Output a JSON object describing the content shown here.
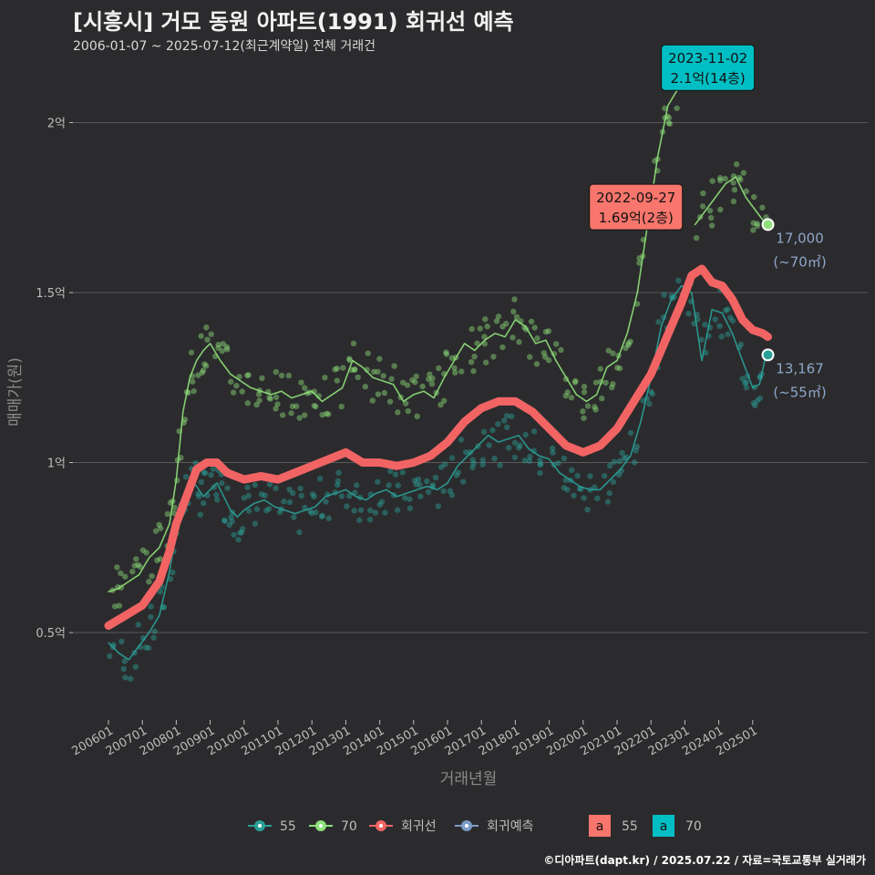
{
  "title": "[시흥시] 거모 동원 아파트(1991) 회귀선 예측",
  "subtitle": "2006-01-07 ~ 2025-07-12(최근계약일) 전체 거래건",
  "caption": "©디아파트(dapt.kr) / 2025.07.22 / 자료=국토교통부 실거래가",
  "colors": {
    "background": "#2b2b2d",
    "grid": "#5a5a5a",
    "series_55": "#2aa198",
    "series_70": "#8fe07a",
    "regression": "#f26464",
    "forecast": "#7f9cc9",
    "label_55": "#f8766d",
    "label_70": "#00bfc4"
  },
  "chart_data": {
    "type": "line",
    "xlabel": "거래년월",
    "ylabel": "매매가(원)",
    "x_range": [
      2006.0,
      2025.6
    ],
    "ylim": [
      0.22,
      2.25
    ],
    "y_unit": "억",
    "y_ticks": [
      {
        "value": 0.5,
        "label": "0.5억"
      },
      {
        "value": 1.0,
        "label": "1억"
      },
      {
        "value": 1.5,
        "label": "1.5억"
      },
      {
        "value": 2.0,
        "label": "2억"
      }
    ],
    "x_ticks": [
      {
        "value": 2006.0,
        "label": "200601"
      },
      {
        "value": 2007.0,
        "label": "200701"
      },
      {
        "value": 2008.0,
        "label": "200801"
      },
      {
        "value": 2009.0,
        "label": "200901"
      },
      {
        "value": 2010.0,
        "label": "201001"
      },
      {
        "value": 2011.0,
        "label": "201101"
      },
      {
        "value": 2012.0,
        "label": "201201"
      },
      {
        "value": 2013.0,
        "label": "201301"
      },
      {
        "value": 2014.0,
        "label": "201401"
      },
      {
        "value": 2015.0,
        "label": "201501"
      },
      {
        "value": 2016.0,
        "label": "201601"
      },
      {
        "value": 2017.0,
        "label": "201701"
      },
      {
        "value": 2018.0,
        "label": "201801"
      },
      {
        "value": 2019.0,
        "label": "201901"
      },
      {
        "value": 2020.0,
        "label": "202001"
      },
      {
        "value": 2021.0,
        "label": "202101"
      },
      {
        "value": 2022.0,
        "label": "202201"
      },
      {
        "value": 2023.0,
        "label": "202301"
      },
      {
        "value": 2024.0,
        "label": "202401"
      },
      {
        "value": 2025.0,
        "label": "202501"
      }
    ],
    "series": [
      {
        "name": "55",
        "color": "#2aa198",
        "x": [
          2006.0,
          2006.3,
          2006.6,
          2006.9,
          2007.2,
          2007.5,
          2007.8,
          2008.0,
          2008.2,
          2008.4,
          2008.6,
          2008.8,
          2009.0,
          2009.2,
          2009.4,
          2009.6,
          2009.8,
          2010.0,
          2010.3,
          2010.6,
          2010.9,
          2011.2,
          2011.5,
          2011.8,
          2012.1,
          2012.4,
          2012.7,
          2013.0,
          2013.3,
          2013.6,
          2013.9,
          2014.2,
          2014.5,
          2014.8,
          2015.1,
          2015.4,
          2015.7,
          2016.0,
          2016.3,
          2016.6,
          2016.9,
          2017.2,
          2017.5,
          2017.8,
          2018.1,
          2018.4,
          2018.7,
          2019.0,
          2019.3,
          2019.6,
          2019.9,
          2020.2,
          2020.5,
          2020.8,
          2021.1,
          2021.4,
          2021.7,
          2022.0,
          2022.3,
          2022.6,
          2022.9,
          2023.2,
          2023.5,
          2023.8,
          2024.1,
          2024.4,
          2024.7,
          2025.0,
          2025.2,
          2025.4
        ],
        "y": [
          0.47,
          0.44,
          0.42,
          0.46,
          0.5,
          0.55,
          0.68,
          0.8,
          0.88,
          0.95,
          0.93,
          0.9,
          0.92,
          0.94,
          0.9,
          0.86,
          0.84,
          0.86,
          0.88,
          0.89,
          0.87,
          0.86,
          0.85,
          0.86,
          0.87,
          0.9,
          0.91,
          0.92,
          0.9,
          0.89,
          0.91,
          0.92,
          0.9,
          0.91,
          0.92,
          0.93,
          0.92,
          0.94,
          0.99,
          1.02,
          1.05,
          1.08,
          1.06,
          1.07,
          1.08,
          1.04,
          1.02,
          1.01,
          0.97,
          0.95,
          0.93,
          0.92,
          0.92,
          0.95,
          0.98,
          1.02,
          1.12,
          1.25,
          1.4,
          1.48,
          1.52,
          1.5,
          1.3,
          1.45,
          1.44,
          1.38,
          1.3,
          1.22,
          1.23,
          1.32
        ]
      },
      {
        "name": "70",
        "color": "#8fe07a",
        "x": [
          2006.0,
          2006.3,
          2006.6,
          2006.9,
          2007.2,
          2007.5,
          2007.8,
          2008.0,
          2008.2,
          2008.4,
          2008.6,
          2008.8,
          2009.0,
          2009.3,
          2009.6,
          2009.9,
          2010.2,
          2010.5,
          2010.8,
          2011.1,
          2011.4,
          2011.7,
          2012.0,
          2012.3,
          2012.6,
          2012.9,
          2013.2,
          2013.5,
          2013.8,
          2014.1,
          2014.4,
          2014.7,
          2015.0,
          2015.3,
          2015.6,
          2015.9,
          2016.2,
          2016.5,
          2016.8,
          2017.1,
          2017.4,
          2017.7,
          2018.0,
          2018.3,
          2018.6,
          2018.9,
          2019.2,
          2019.5,
          2019.8,
          2020.1,
          2020.4,
          2020.7,
          2021.0,
          2021.3,
          2021.6,
          2021.9,
          2022.2,
          2022.5,
          2022.8
        ],
        "y": [
          0.62,
          0.63,
          0.65,
          0.67,
          0.72,
          0.75,
          0.82,
          0.95,
          1.15,
          1.25,
          1.3,
          1.33,
          1.35,
          1.3,
          1.26,
          1.24,
          1.22,
          1.21,
          1.2,
          1.21,
          1.19,
          1.2,
          1.21,
          1.18,
          1.2,
          1.22,
          1.3,
          1.28,
          1.25,
          1.24,
          1.23,
          1.18,
          1.2,
          1.21,
          1.19,
          1.25,
          1.3,
          1.35,
          1.33,
          1.36,
          1.38,
          1.37,
          1.42,
          1.4,
          1.35,
          1.36,
          1.3,
          1.25,
          1.2,
          1.18,
          1.2,
          1.28,
          1.3,
          1.38,
          1.5,
          1.7,
          1.9,
          2.05,
          2.1
        ]
      },
      {
        "name": "70",
        "color": "#8fe07a",
        "x": [
          2023.3,
          2023.6,
          2023.9,
          2024.2,
          2024.5,
          2024.8,
          2025.1,
          2025.4
        ],
        "y": [
          1.7,
          1.74,
          1.78,
          1.82,
          1.84,
          1.78,
          1.74,
          1.7
        ]
      },
      {
        "name": "회귀선",
        "color": "#f26464",
        "x": [
          2006.0,
          2006.5,
          2007.0,
          2007.5,
          2007.8,
          2008.0,
          2008.3,
          2008.6,
          2008.9,
          2009.2,
          2009.5,
          2010.0,
          2010.5,
          2011.0,
          2011.5,
          2012.0,
          2012.5,
          2013.0,
          2013.5,
          2014.0,
          2014.5,
          2015.0,
          2015.5,
          2016.0,
          2016.5,
          2017.0,
          2017.5,
          2018.0,
          2018.5,
          2019.0,
          2019.5,
          2020.0,
          2020.5,
          2021.0,
          2021.5,
          2022.0,
          2022.3,
          2022.6,
          2022.9,
          2023.2,
          2023.5,
          2023.8,
          2024.1,
          2024.4,
          2024.7,
          2025.0,
          2025.3,
          2025.45
        ],
        "y": [
          0.52,
          0.55,
          0.58,
          0.65,
          0.74,
          0.82,
          0.9,
          0.98,
          1.0,
          1.0,
          0.97,
          0.95,
          0.96,
          0.95,
          0.97,
          0.99,
          1.01,
          1.03,
          1.0,
          1.0,
          0.99,
          1.0,
          1.02,
          1.06,
          1.12,
          1.16,
          1.18,
          1.18,
          1.15,
          1.1,
          1.05,
          1.03,
          1.05,
          1.1,
          1.18,
          1.26,
          1.33,
          1.4,
          1.47,
          1.55,
          1.57,
          1.53,
          1.52,
          1.48,
          1.42,
          1.39,
          1.38,
          1.37
        ]
      }
    ],
    "annotations": [
      {
        "label": "2022-09-27\n1.69억(2층)",
        "series": "55",
        "x": 2022.74,
        "y": 1.69
      },
      {
        "label": "2023-11-02\n2.1억(14층)",
        "series": "70",
        "x": 2023.84,
        "y": 2.1
      }
    ],
    "end_labels": [
      {
        "label": "17,000\n(~70㎡)",
        "series": "70",
        "x": 2025.45,
        "y": 1.7
      },
      {
        "label": "13,167\n(~55㎡)",
        "series": "55",
        "x": 2025.45,
        "y": 1.3167
      }
    ],
    "legend": {
      "placement": "bottom",
      "items": [
        {
          "label": "55",
          "color": "#2aa198"
        },
        {
          "label": "70",
          "color": "#8fe07a"
        },
        {
          "label": "회귀선",
          "color": "#f26464"
        },
        {
          "label": "회귀예측",
          "color": "#7f9cc9"
        }
      ],
      "label_items": [
        {
          "letter": "a",
          "label": "55",
          "color": "#f8766d"
        },
        {
          "letter": "a",
          "label": "70",
          "color": "#00bfc4"
        }
      ]
    },
    "grid": true
  }
}
